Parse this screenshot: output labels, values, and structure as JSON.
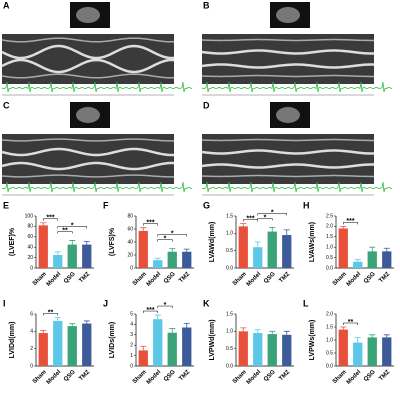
{
  "panels": [
    {
      "label": "A"
    },
    {
      "label": "B"
    },
    {
      "label": "C"
    },
    {
      "label": "D"
    }
  ],
  "chart_data": [
    {
      "type": "bar",
      "panel_label": "E",
      "ylabel": "(LVEF)%",
      "categories": [
        "Sham",
        "Model",
        "QSG",
        "TMZ"
      ],
      "values": [
        82,
        25,
        45,
        45
      ],
      "errors": [
        5,
        6,
        8,
        6
      ],
      "colors": [
        "#e8503a",
        "#5bc8e8",
        "#3aa37a",
        "#3d5a99"
      ],
      "ylim": [
        0,
        100
      ],
      "yticks": [
        0,
        20,
        40,
        60,
        80,
        100
      ],
      "annotations": [
        "***",
        "**",
        "*"
      ]
    },
    {
      "type": "bar",
      "panel_label": "F",
      "ylabel": "(LVFS)%",
      "categories": [
        "Sham",
        "Model",
        "QSG",
        "TMZ"
      ],
      "values": [
        57,
        12,
        25,
        25
      ],
      "errors": [
        5,
        3,
        5,
        4
      ],
      "colors": [
        "#e8503a",
        "#5bc8e8",
        "#3aa37a",
        "#3d5a99"
      ],
      "ylim": [
        0,
        80
      ],
      "yticks": [
        0,
        20,
        40,
        60,
        80
      ],
      "annotations": [
        "***",
        "*",
        "*"
      ]
    },
    {
      "type": "bar",
      "panel_label": "G",
      "ylabel": "LVAWd(mm)",
      "categories": [
        "Sham",
        "Model",
        "QSG",
        "TMZ"
      ],
      "values": [
        1.2,
        0.6,
        1.05,
        0.95
      ],
      "errors": [
        0.08,
        0.15,
        0.12,
        0.15
      ],
      "colors": [
        "#e8503a",
        "#5bc8e8",
        "#3aa37a",
        "#3d5a99"
      ],
      "ylim": [
        0,
        1.5
      ],
      "yticks": [
        {
          "value": 0,
          "label": "0.0"
        },
        0.5,
        {
          "value": 1,
          "label": "1.0"
        },
        1.5
      ],
      "annotations": [
        "***",
        "*",
        "*"
      ]
    },
    {
      "type": "bar",
      "panel_label": "H",
      "ylabel": "LVAWs(mm)",
      "categories": [
        "Sham",
        "Model",
        "QSG",
        "TMZ"
      ],
      "values": [
        1.9,
        0.3,
        0.8,
        0.8
      ],
      "errors": [
        0.1,
        0.1,
        0.2,
        0.15
      ],
      "colors": [
        "#e8503a",
        "#5bc8e8",
        "#3aa37a",
        "#3d5a99"
      ],
      "ylim": [
        0,
        2.5
      ],
      "yticks": [
        {
          "value": 0,
          "label": "0.0"
        },
        0.5,
        {
          "value": 1,
          "label": "1.0"
        },
        1.5,
        {
          "value": 2,
          "label": "2.0"
        },
        2.5
      ],
      "annotations": [
        "***"
      ]
    },
    {
      "type": "bar",
      "panel_label": "I",
      "ylabel": "LVIDd(mm)",
      "categories": [
        "Sham",
        "Model",
        "QSG",
        "TMZ"
      ],
      "values": [
        3.8,
        5.2,
        4.6,
        4.9
      ],
      "errors": [
        0.3,
        0.4,
        0.3,
        0.3
      ],
      "colors": [
        "#e8503a",
        "#5bc8e8",
        "#3aa37a",
        "#3d5a99"
      ],
      "ylim": [
        0,
        6
      ],
      "yticks": [
        0,
        2,
        4,
        6
      ],
      "annotations": [
        "**"
      ]
    },
    {
      "type": "bar",
      "panel_label": "J",
      "ylabel": "LVIDs(mm)",
      "categories": [
        "Sham",
        "Model",
        "QSG",
        "TMZ"
      ],
      "values": [
        1.5,
        4.5,
        3.2,
        3.7
      ],
      "errors": [
        0.4,
        0.4,
        0.4,
        0.4
      ],
      "colors": [
        "#e8503a",
        "#5bc8e8",
        "#3aa37a",
        "#3d5a99"
      ],
      "ylim": [
        0,
        5
      ],
      "yticks": [
        0,
        1,
        2,
        3,
        4,
        5
      ],
      "annotations": [
        "***",
        "*"
      ]
    },
    {
      "type": "bar",
      "panel_label": "K",
      "ylabel": "LVPWd(mm)",
      "categories": [
        "Sham",
        "Model",
        "QSG",
        "TMZ"
      ],
      "values": [
        1.0,
        0.95,
        0.92,
        0.9
      ],
      "errors": [
        0.1,
        0.1,
        0.08,
        0.1
      ],
      "colors": [
        "#e8503a",
        "#5bc8e8",
        "#3aa37a",
        "#3d5a99"
      ],
      "ylim": [
        0,
        1.5
      ],
      "yticks": [
        {
          "value": 0,
          "label": "0.0"
        },
        0.5,
        {
          "value": 1,
          "label": "1.0"
        },
        1.5
      ],
      "annotations": []
    },
    {
      "type": "bar",
      "panel_label": "L",
      "ylabel": "LVPWs(mm)",
      "categories": [
        "Sham",
        "Model",
        "QSG",
        "TMZ"
      ],
      "values": [
        1.4,
        0.9,
        1.1,
        1.1
      ],
      "errors": [
        0.1,
        0.2,
        0.1,
        0.1
      ],
      "colors": [
        "#e8503a",
        "#5bc8e8",
        "#3aa37a",
        "#3d5a99"
      ],
      "ylim": [
        0,
        2
      ],
      "yticks": [
        {
          "value": 0,
          "label": "0.0"
        },
        0.5,
        {
          "value": 1,
          "label": "1.0"
        },
        1.5,
        {
          "value": 2,
          "label": "2.0"
        }
      ],
      "annotations": [
        "**"
      ]
    }
  ]
}
